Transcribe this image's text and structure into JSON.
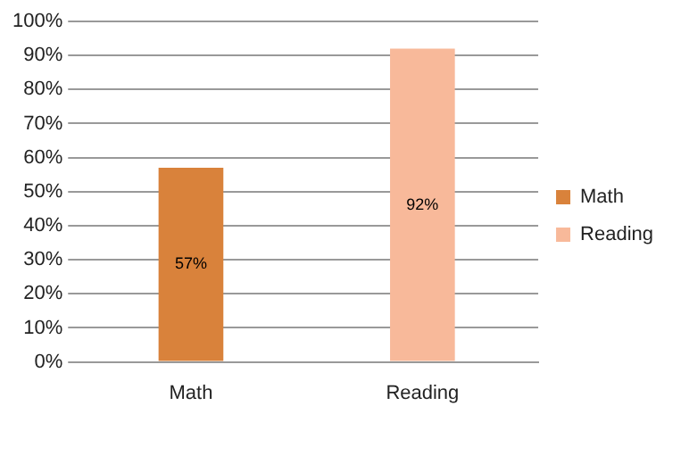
{
  "chart_data": {
    "type": "bar",
    "categories": [
      "Math",
      "Reading"
    ],
    "series": [
      {
        "name": "Math",
        "color": "#d9823b",
        "values": [
          57,
          null
        ],
        "value_labels": [
          "57%",
          null
        ]
      },
      {
        "name": "Reading",
        "color": "#f8b99a",
        "values": [
          null,
          92
        ],
        "value_labels": [
          null,
          "92%"
        ]
      }
    ],
    "ylim": [
      0,
      100
    ],
    "yticks": [
      {
        "value": 0,
        "label": "0%"
      },
      {
        "value": 10,
        "label": "10%"
      },
      {
        "value": 20,
        "label": "20%"
      },
      {
        "value": 30,
        "label": "30%"
      },
      {
        "value": 40,
        "label": "40%"
      },
      {
        "value": 50,
        "label": "50%"
      },
      {
        "value": 60,
        "label": "60%"
      },
      {
        "value": 70,
        "label": "70%"
      },
      {
        "value": 80,
        "label": "80%"
      },
      {
        "value": 90,
        "label": "90%"
      },
      {
        "value": 100,
        "label": "100%"
      }
    ],
    "grid": "y",
    "legend": "right"
  }
}
